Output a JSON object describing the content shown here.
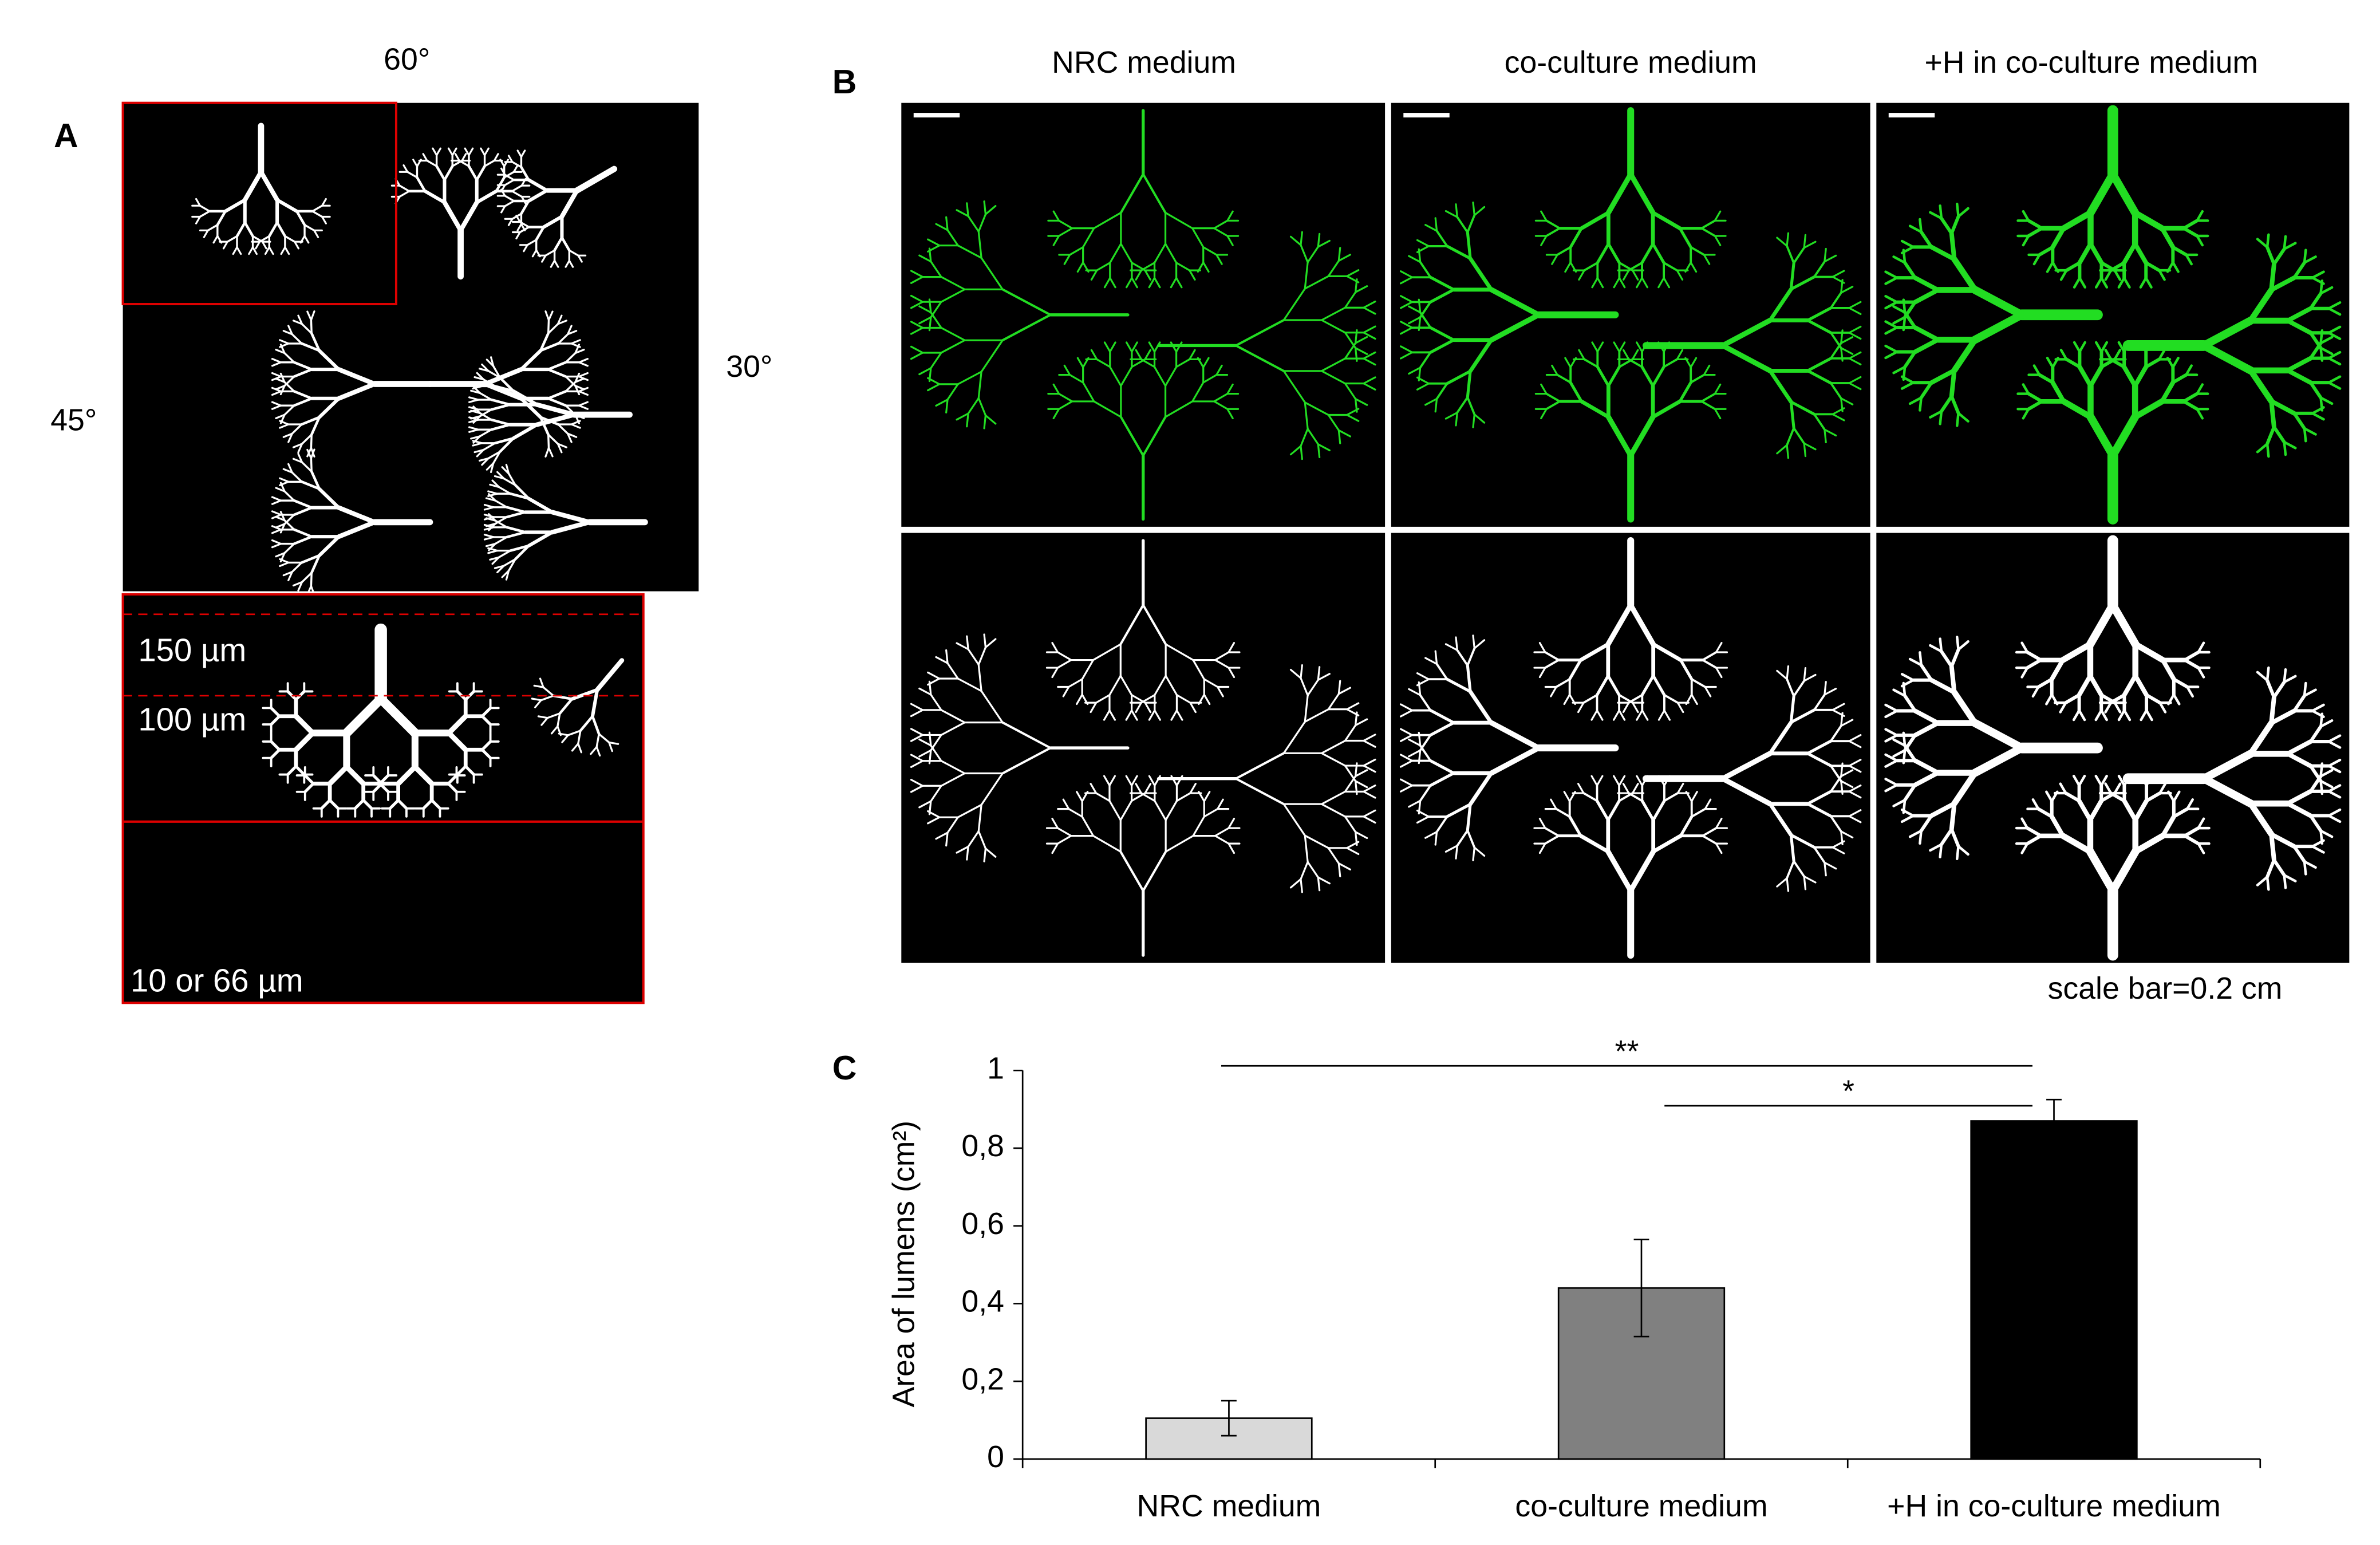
{
  "panel_a": {
    "label": "A",
    "angles": [
      "60°",
      "45°",
      "30°"
    ],
    "widths": [
      "150 µm",
      "100 µm",
      "10 or 66 µm"
    ]
  },
  "panel_b": {
    "label": "B",
    "columns": [
      "NRC medium",
      "co-culture medium",
      "+H in co-culture medium"
    ],
    "scale_note": "scale bar=0.2 cm"
  },
  "chart_data": {
    "type": "bar",
    "label": "C",
    "y_label": "Area of lumens (cm²)",
    "categories": [
      "NRC medium",
      "co-culture medium",
      "+H in co-culture medium"
    ],
    "values": [
      0.105,
      0.44,
      0.87
    ],
    "errors": [
      0.045,
      0.125,
      0.055
    ],
    "colors": [
      "#d9d9d9",
      "#808080",
      "#000000"
    ],
    "ylim": [
      0,
      1
    ],
    "yticks": [
      0,
      {
        "value": 0.2,
        "label": "0,2"
      },
      {
        "value": 0.4,
        "label": "0,4"
      },
      {
        "value": 0.6,
        "label": "0,6"
      },
      {
        "value": 0.8,
        "label": "0,8"
      },
      1
    ],
    "significance": [
      {
        "text": "**",
        "pair": [
          0,
          2
        ]
      },
      {
        "text": "*",
        "pair": [
          1,
          2
        ]
      }
    ]
  }
}
